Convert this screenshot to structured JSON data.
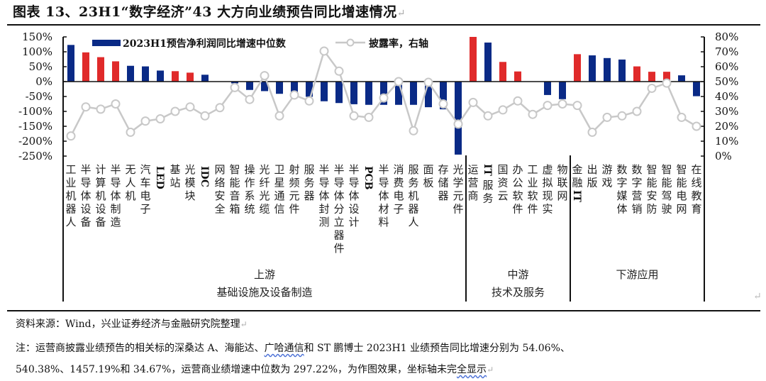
{
  "title": "图表 13、23H1“数字经济”43 大方向业绩预告同比增速情况",
  "return_mark": "↵",
  "legend": {
    "bar_label": "2023H1预告净利润同比增速中位数",
    "line_label": "披露率，右轴"
  },
  "colors": {
    "blue": "#0a2a86",
    "red": "#e02a2a",
    "line": "#c8c8c8",
    "axis": "#111111"
  },
  "groups": [
    {
      "name": "上游",
      "sub": "基础设施及设备制造",
      "start": 0,
      "end": 26
    },
    {
      "name": "中游",
      "sub": "技术及服务",
      "start": 27,
      "end": 33
    },
    {
      "name": "下游应用",
      "sub": "",
      "start": 34,
      "end": 42
    }
  ],
  "chart_data": {
    "type": "bar+line",
    "title": "23H1“数字经济”43 大方向业绩预告同比增速情况",
    "categories": [
      "工业机器人",
      "半导体设备",
      "计算机设备",
      "半导体制造",
      "无人机",
      "汽车电子",
      "LED",
      "基站",
      "光模块",
      "IDC",
      "网络安全",
      "智能音箱",
      "操作系统",
      "光纤光缆",
      "卫星通信",
      "射频元件",
      "服务器",
      "半导体封测",
      "半导体分立器件",
      "半导体设计",
      "PCB",
      "半导体材料",
      "消费电子",
      "服务机器人",
      "面板",
      "存储器",
      "光学元件",
      "运营商",
      "IT服务",
      "国资云",
      "办公软件",
      "工业软件",
      "虚拟现实",
      "物联网",
      "金融IT",
      "出版",
      "游戏",
      "数字媒体",
      "数字营销",
      "智能安防",
      "智能驾驶",
      "智能电网",
      "在线教育"
    ],
    "series": [
      {
        "name": "2023H1预告净利润同比增速中位数",
        "type": "bar",
        "axis": "left",
        "unit": "%",
        "values": [
          123,
          98,
          82,
          68,
          53,
          51,
          37,
          35,
          30,
          23,
          0,
          -6,
          -28,
          -32,
          -41,
          -38,
          -51,
          -66,
          -72,
          -76,
          -78,
          -78,
          -78,
          -78,
          -86,
          -93,
          -245,
          297.22,
          131,
          66,
          34,
          0,
          -45,
          -59,
          92,
          88,
          79,
          74,
          51,
          33,
          33,
          21,
          -49
        ],
        "colors": [
          "blue",
          "red",
          "red",
          "red",
          "blue",
          "blue",
          "blue",
          "red",
          "red",
          "blue",
          "blue",
          "blue",
          "blue",
          "blue",
          "blue",
          "blue",
          "blue",
          "blue",
          "blue",
          "blue",
          "blue",
          "blue",
          "blue",
          "blue",
          "blue",
          "blue",
          "blue",
          "red",
          "blue",
          "red",
          "red",
          "blue",
          "blue",
          "blue",
          "red",
          "blue",
          "blue",
          "blue",
          "red",
          "red",
          "red",
          "blue",
          "blue"
        ]
      },
      {
        "name": "披露率，右轴",
        "type": "line",
        "axis": "right",
        "unit": "%",
        "values": [
          13.5,
          33,
          31.5,
          35,
          16,
          23.5,
          25,
          30,
          33,
          27,
          32.5,
          46,
          38,
          54,
          27,
          41,
          37,
          70.5,
          57,
          27,
          26,
          39,
          50,
          17,
          49.5,
          35,
          21.5,
          36,
          27,
          31,
          37,
          28,
          34,
          35,
          34,
          16,
          26,
          27,
          30,
          45.5,
          49,
          26,
          20
        ]
      }
    ],
    "y_left": {
      "min": -250,
      "max": 150,
      "step": 50,
      "ticks": [
        "150%",
        "100%",
        "50%",
        "0%",
        "-50%",
        "-100%",
        "-150%",
        "-200%",
        "-250%"
      ]
    },
    "y_right": {
      "min": 0,
      "max": 80,
      "step": 10,
      "ticks": [
        "80%",
        "70%",
        "60%",
        "50%",
        "40%",
        "30%",
        "20%",
        "10%",
        "0%"
      ]
    },
    "xlabel": "",
    "ylabel": "",
    "legend_position": "top",
    "grid": false,
    "annotation": "运营商增速中位数297.22%，坐标轴未完全显示"
  },
  "footer": {
    "source": "资料来源：Wind，兴业证券经济与金融研究院整理",
    "note_line1_a": "注：运营商披露业绩预告的相关标的深桑达 A、海能达、",
    "note_line1_wavy": "广哈通信",
    "note_line1_b": "和 ST 鹏博士 2023H1 业绩预告同比增速分别为 54.06%、",
    "note_line2_a": "540.38%、1457.19%和 34.67%，运营商业绩增速中位数为 297.22%，为作图效果，坐标轴未完",
    "note_line2_wavy": "全显示"
  }
}
